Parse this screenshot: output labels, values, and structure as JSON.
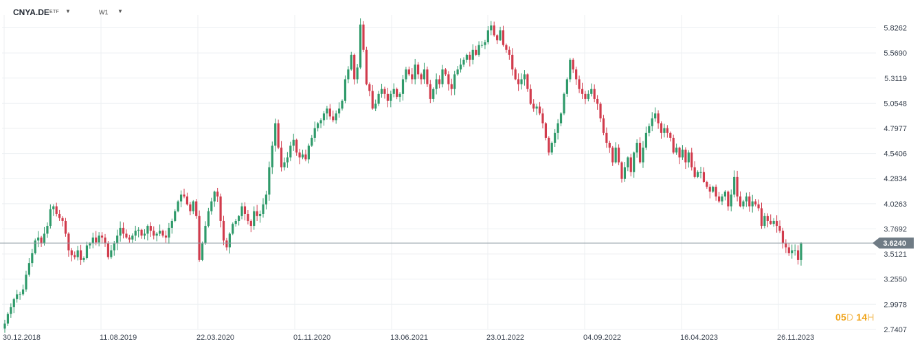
{
  "header": {
    "symbol": "CNYA.DE",
    "symbol_type": "ETF",
    "timeframe": "W1"
  },
  "countdown": {
    "days": "05",
    "days_unit": "D",
    "hours": "14",
    "hours_unit": "H"
  },
  "colors": {
    "up": "#2f9a6a",
    "down": "#d13b4c",
    "grid": "#eceff2",
    "price_line": "#8e9aa3",
    "price_tag": "#6f7b85",
    "countdown": "#f0a318"
  },
  "chart_data": {
    "type": "candlestick",
    "x_tick_labels": [
      "30.12.2018",
      "11.08.2019",
      "22.03.2020",
      "01.11.2020",
      "13.06.2021",
      "23.01.2022",
      "04.09.2022",
      "16.04.2023",
      "26.11.2023"
    ],
    "y_tick_labels": [
      "5.8262",
      "5.5690",
      "5.3119",
      "5.0548",
      "4.7977",
      "4.5406",
      "4.2834",
      "4.0263",
      "3.7692",
      "3.5121",
      "3.2550",
      "2.9978",
      "2.7407"
    ],
    "ylim": [
      2.74,
      5.83
    ],
    "current_price": "3.6240",
    "grid": true,
    "close": [
      2.8,
      2.9,
      2.97,
      3.05,
      3.1,
      3.1,
      3.15,
      3.3,
      3.42,
      3.52,
      3.65,
      3.68,
      3.62,
      3.72,
      3.8,
      3.97,
      4.0,
      3.92,
      3.88,
      3.85,
      3.72,
      3.55,
      3.5,
      3.48,
      3.55,
      3.45,
      3.47,
      3.6,
      3.62,
      3.68,
      3.63,
      3.7,
      3.68,
      3.62,
      3.48,
      3.55,
      3.62,
      3.7,
      3.78,
      3.72,
      3.68,
      3.66,
      3.7,
      3.75,
      3.76,
      3.7,
      3.72,
      3.8,
      3.75,
      3.7,
      3.72,
      3.75,
      3.7,
      3.68,
      3.78,
      3.85,
      3.95,
      4.05,
      4.12,
      4.1,
      4.02,
      3.95,
      4.05,
      3.9,
      3.45,
      3.62,
      3.8,
      3.95,
      4.05,
      4.15,
      4.1,
      3.85,
      3.65,
      3.58,
      3.72,
      3.82,
      3.85,
      3.9,
      4.0,
      3.92,
      3.85,
      3.8,
      3.95,
      3.9,
      3.92,
      4.02,
      4.12,
      4.4,
      4.62,
      4.85,
      4.6,
      4.4,
      4.45,
      4.5,
      4.62,
      4.68,
      4.55,
      4.5,
      4.53,
      4.48,
      4.62,
      4.7,
      4.8,
      4.85,
      4.88,
      4.95,
      5.0,
      4.92,
      4.88,
      4.95,
      5.0,
      5.08,
      5.3,
      5.4,
      5.55,
      5.3,
      5.42,
      5.86,
      5.6,
      5.25,
      5.18,
      5.0,
      5.05,
      5.15,
      5.2,
      5.15,
      5.08,
      5.15,
      5.2,
      5.12,
      5.15,
      5.3,
      5.4,
      5.35,
      5.3,
      5.45,
      5.35,
      5.3,
      5.4,
      5.25,
      5.1,
      5.2,
      5.3,
      5.25,
      5.4,
      5.35,
      5.25,
      5.2,
      5.35,
      5.4,
      5.45,
      5.5,
      5.55,
      5.5,
      5.6,
      5.55,
      5.65,
      5.65,
      5.68,
      5.8,
      5.85,
      5.75,
      5.7,
      5.8,
      5.65,
      5.6,
      5.55,
      5.4,
      5.3,
      5.25,
      5.3,
      5.35,
      5.2,
      5.05,
      5.0,
      5.02,
      4.95,
      4.85,
      4.7,
      4.55,
      4.65,
      4.75,
      4.85,
      4.95,
      5.15,
      5.3,
      5.5,
      5.4,
      5.3,
      5.2,
      5.15,
      5.1,
      5.15,
      5.2,
      5.1,
      5.05,
      4.9,
      4.75,
      4.65,
      4.6,
      4.45,
      4.6,
      4.45,
      4.28,
      4.4,
      4.5,
      4.35,
      4.55,
      4.65,
      4.45,
      4.6,
      4.75,
      4.82,
      4.9,
      4.95,
      4.85,
      4.75,
      4.8,
      4.75,
      4.7,
      4.55,
      4.6,
      4.5,
      4.58,
      4.45,
      4.55,
      4.4,
      4.3,
      4.35,
      4.35,
      4.25,
      4.2,
      4.15,
      4.2,
      4.1,
      4.05,
      4.1,
      4.15,
      4.0,
      4.12,
      4.3,
      4.1,
      4.0,
      4.05,
      4.1,
      4.0,
      4.05,
      4.02,
      3.98,
      3.8,
      3.9,
      3.85,
      3.82,
      3.85,
      3.8,
      3.75,
      3.62,
      3.58,
      3.52,
      3.55,
      3.55,
      3.45,
      3.62
    ],
    "volatility_note": "",
    "series": [
      {
        "values_key": "close"
      }
    ]
  }
}
